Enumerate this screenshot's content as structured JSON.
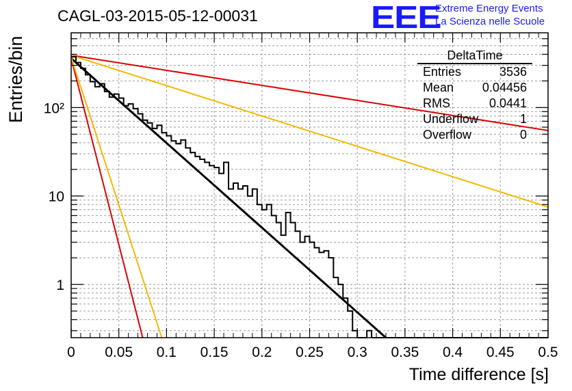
{
  "title": "CAGL-03-2015-05-12-00031",
  "logo": {
    "mark": "EEE",
    "line1": "Extreme Energy Events",
    "line2": "La Scienza nelle Scuole",
    "color": "#1a1aff"
  },
  "stats": {
    "name": "DeltaTime",
    "rows": [
      {
        "label": "Entries",
        "value": "3536"
      },
      {
        "label": "Mean",
        "value": "0.04456"
      },
      {
        "label": "RMS",
        "value": "0.0441"
      },
      {
        "label": "Underflow",
        "value": "1"
      },
      {
        "label": "Overflow",
        "value": "0"
      }
    ]
  },
  "chart_data": {
    "type": "line",
    "xlabel": "Time difference [s]",
    "ylabel": "Entries/bin",
    "xlim": [
      0,
      0.5
    ],
    "ylim": [
      0.25,
      700
    ],
    "yscale": "log",
    "grid": true,
    "x_ticks": [
      "0",
      "0.05",
      "0.1",
      "0.15",
      "0.2",
      "0.25",
      "0.3",
      "0.35",
      "0.4",
      "0.45",
      "0.5"
    ],
    "y_ticks": [
      {
        "value": 1,
        "label": "1"
      },
      {
        "value": 10,
        "label": "10"
      },
      {
        "value": 100,
        "label": "10²"
      }
    ],
    "histogram": {
      "color": "#000000",
      "bin_width": 0.005,
      "values": [
        375,
        323,
        278,
        235,
        196,
        172,
        186,
        152,
        131,
        142,
        128,
        105,
        110,
        97,
        85,
        72,
        67,
        58,
        63,
        52,
        48,
        42,
        39,
        43,
        35,
        31,
        28,
        26,
        24,
        22,
        21,
        18,
        24,
        12,
        14,
        12,
        13,
        10,
        12,
        8,
        7,
        8,
        6,
        5,
        3.6,
        6.5,
        5,
        4,
        3,
        3.5,
        3,
        2.6,
        2.3,
        2.4,
        2,
        1.2,
        1,
        0.7,
        0.5,
        0.3,
        0.2,
        0.2,
        0.3,
        0.15,
        0.2,
        0.2,
        0.1,
        0.1,
        0.1,
        0.1,
        0.1,
        0.1,
        0.1,
        0.1,
        0.1,
        0.1,
        0.1,
        0.1,
        0.1,
        0.1,
        0.1,
        0.1,
        0.1,
        0.1,
        0.1,
        0.1,
        0.1,
        0.1,
        0.1,
        0.1,
        0.1,
        0.1,
        0.1,
        0.1,
        0.1,
        0.1,
        0.1,
        0.1,
        0.1,
        0.1
      ]
    },
    "curves": [
      {
        "color": "#000000",
        "y0": 360,
        "x1": 0.33,
        "y1": 0.25
      },
      {
        "color": "#dd0000",
        "y0": 390,
        "x1": 0.5,
        "y1": 55
      },
      {
        "color": "#f5b800",
        "y0": 390,
        "x1": 0.5,
        "y1": 7.5
      },
      {
        "color": "#dd0000",
        "y0": 360,
        "x1": 0.075,
        "y1": 0.25
      },
      {
        "color": "#f5b800",
        "y0": 370,
        "x1": 0.095,
        "y1": 0.25
      }
    ]
  }
}
